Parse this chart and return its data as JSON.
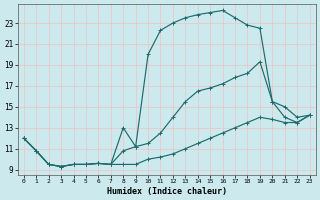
{
  "xlabel": "Humidex (Indice chaleur)",
  "bg_color": "#cce9ee",
  "grid_color": "#b8d8de",
  "line_color": "#1e6b6b",
  "xlim": [
    -0.5,
    23.5
  ],
  "ylim": [
    8.5,
    24.8
  ],
  "xtick_vals": [
    0,
    1,
    2,
    3,
    4,
    5,
    6,
    7,
    8,
    9,
    10,
    11,
    12,
    13,
    14,
    15,
    16,
    17,
    18,
    19,
    20,
    21,
    22,
    23
  ],
  "ytick_vals": [
    9,
    11,
    13,
    15,
    17,
    19,
    21,
    23
  ],
  "curve1_x": [
    0,
    1,
    2,
    3,
    4,
    5,
    6,
    7,
    8,
    9,
    10,
    11,
    12,
    13,
    14,
    15,
    16,
    17,
    18,
    19,
    20,
    21,
    22,
    23
  ],
  "curve1_y": [
    12.0,
    10.8,
    9.5,
    9.3,
    9.5,
    9.5,
    9.6,
    9.5,
    9.5,
    9.5,
    10.0,
    10.2,
    10.5,
    11.0,
    11.5,
    12.0,
    12.5,
    13.0,
    13.5,
    14.0,
    13.8,
    13.5,
    13.5,
    14.2
  ],
  "curve2_x": [
    0,
    1,
    2,
    3,
    4,
    5,
    6,
    7,
    8,
    9,
    10,
    11,
    12,
    13,
    14,
    15,
    16,
    17,
    18,
    19,
    20,
    21,
    22,
    23
  ],
  "curve2_y": [
    12.0,
    10.8,
    9.5,
    9.3,
    9.5,
    9.5,
    9.6,
    9.5,
    13.0,
    11.2,
    11.5,
    12.5,
    14.0,
    15.5,
    16.5,
    16.8,
    17.2,
    17.8,
    18.2,
    19.3,
    15.5,
    15.0,
    14.0,
    14.2
  ],
  "curve3_x": [
    0,
    1,
    2,
    3,
    4,
    5,
    6,
    7,
    8,
    9,
    10,
    11,
    12,
    13,
    14,
    15,
    16,
    17,
    18,
    19,
    20,
    21,
    22,
    23
  ],
  "curve3_y": [
    12.0,
    10.8,
    9.5,
    9.3,
    9.5,
    9.5,
    9.6,
    9.5,
    10.8,
    11.2,
    20.0,
    22.3,
    23.0,
    23.5,
    23.8,
    24.0,
    24.2,
    23.5,
    22.8,
    22.5,
    15.5,
    14.0,
    13.5,
    14.2
  ]
}
